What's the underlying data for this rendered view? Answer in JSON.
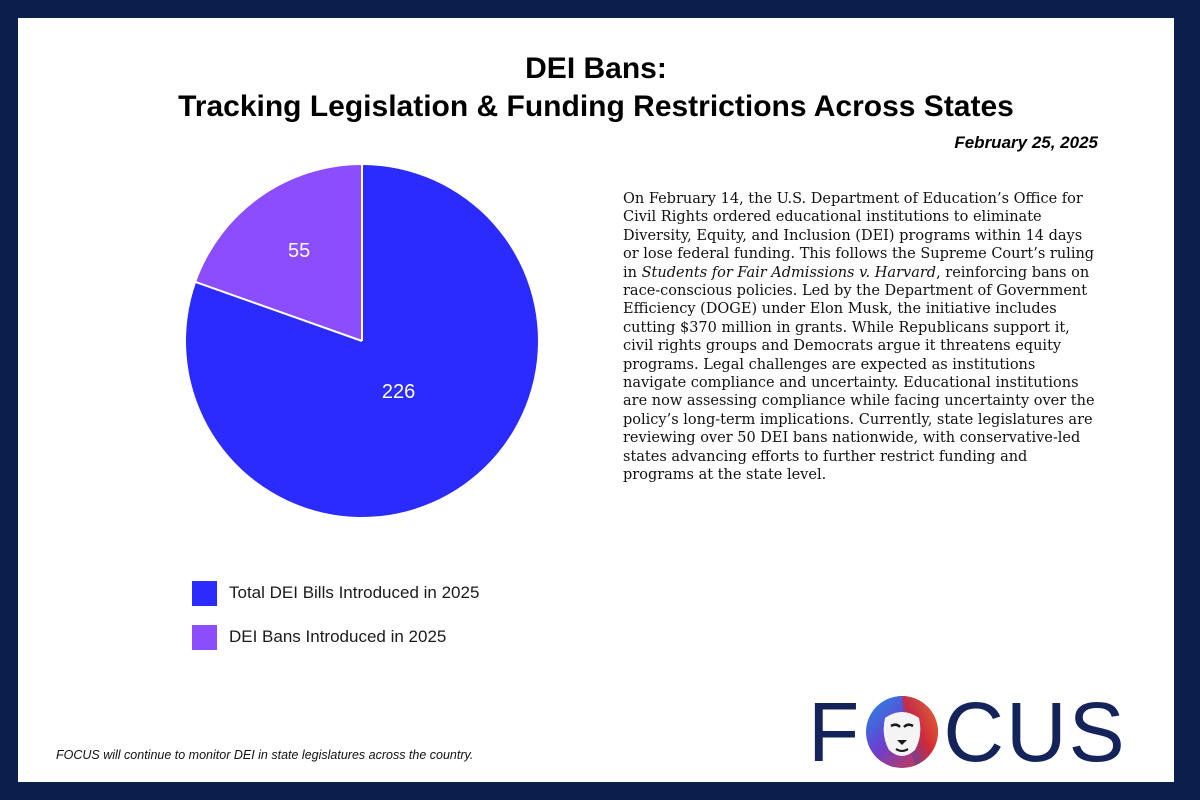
{
  "header": {
    "title_line1": "DEI Bans:",
    "title_line2": "Tracking Legislation & Funding Restrictions Across States",
    "date": "February 25, 2025"
  },
  "chart_data": {
    "type": "pie",
    "title": "",
    "slices": [
      {
        "label": "Total DEI Bills Introduced in 2025",
        "value": 226,
        "color": "#2b2bff"
      },
      {
        "label": "DEI Bans Introduced in 2025",
        "value": 55,
        "color": "#8b4dff"
      }
    ],
    "legend_position": "bottom-left"
  },
  "body": {
    "p1": "On February 14, the U.S. Department of Education’s Office for Civil Rights ordered educational institutions to eliminate Diversity, Equity, and Inclusion (DEI) programs within 14 days or lose federal funding. This follows the Supreme Court’s ruling in ",
    "case_name": "Students for Fair Admissions v. Harvard",
    "p2": ", reinforcing bans on race-conscious policies. Led by the Department of Government Efficiency (DOGE) under Elon Musk, the initiative includes cutting $370 million in grants. While Republicans support it, civil rights groups and Democrats argue it threatens equity programs. Legal challenges are expected as institutions navigate compliance and uncertainty. Educational institutions are now assessing compliance while facing uncertainty over the policy’s long-term implications. Currently, state legislatures are reviewing over 50 DEI bans nationwide, with conservative-led states advancing efforts to further restrict funding and programs at the state level."
  },
  "footer": {
    "note": "FOCUS will continue to monitor DEI in state legislatures across the country."
  },
  "logo": {
    "text": "FOCUS",
    "letter_f": "F",
    "letters_cus": "CUS",
    "mark_icon": "lion-head-icon",
    "color": "#14245a"
  },
  "colors": {
    "frame": "#0b1f4d",
    "series_total": "#2b2bff",
    "series_bans": "#8b4dff"
  }
}
